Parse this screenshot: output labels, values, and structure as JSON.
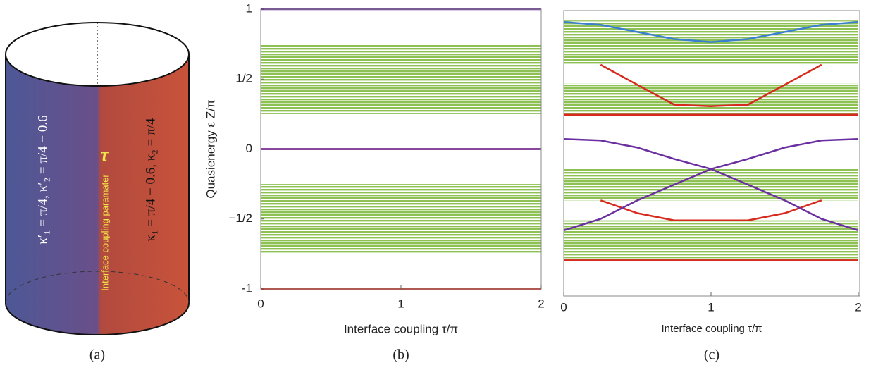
{
  "diagram": {
    "caption": "(a)",
    "left_text": "κ′₁ = π/4,   κ′₂ = π/4 − 0.6",
    "right_text": "κ₁ = π/4 − 0.6,   κ₂ = π/4",
    "interface_text": "Interface coupling paramater",
    "interface_symbol": "τ"
  },
  "chart_data": [
    {
      "type": "line",
      "caption": "(b)",
      "xlabel": "Interface coupling τ/π",
      "ylabel": "Quasienergy ε Z/π",
      "x": [
        0,
        2
      ],
      "xlim": [
        0,
        2
      ],
      "xticks": [
        0,
        1,
        2
      ],
      "ylim": [
        -1,
        1
      ],
      "yticks": [
        1,
        {
          "value": 0.5,
          "label": "1/2"
        },
        0,
        {
          "value": -0.5,
          "label": "−1/2"
        },
        -1
      ],
      "band_color": "#8dc153",
      "bands": [
        [
          0.25,
          0.75
        ],
        [
          -0.75,
          -0.25
        ]
      ],
      "series": [
        {
          "color": "#6a2fa0",
          "values": [
            1,
            1
          ]
        },
        {
          "color": "#d62a1e",
          "values": [
            0,
            0
          ]
        },
        {
          "color": "#6a2fa0",
          "values": [
            0,
            0
          ]
        },
        {
          "color": "#d62a1e",
          "values": [
            -1,
            -1
          ]
        }
      ]
    },
    {
      "type": "line",
      "caption": "(c)",
      "xlabel": "Interface coupling τ/π",
      "x": [
        0,
        0.25,
        0.5,
        0.75,
        1,
        1.25,
        1.5,
        1.75,
        2
      ],
      "xlim": [
        0,
        2
      ],
      "xticks": [
        0,
        1,
        2
      ],
      "ylim": [
        -1,
        1
      ],
      "band_color": "#8dc153",
      "bands": [
        [
          0.62,
          0.93
        ],
        [
          0.27,
          0.49
        ],
        [
          -0.33,
          -0.11
        ],
        [
          -0.75,
          -0.47
        ]
      ],
      "series": [
        {
          "color": "#3a7fd0",
          "values": [
            0.92,
            0.9,
            0.85,
            0.8,
            0.78,
            0.8,
            0.85,
            0.9,
            0.92
          ]
        },
        {
          "color": "#d62a1e",
          "values": [
            null,
            0.62,
            0.48,
            0.34,
            0.33,
            0.34,
            0.48,
            0.62,
            null
          ]
        },
        {
          "color": "#d62a1e",
          "values": [
            0.27,
            0.27,
            0.27,
            0.27,
            0.27,
            0.27,
            0.27,
            0.27,
            0.27
          ]
        },
        {
          "color": "#6a2fa0",
          "values": [
            0.1,
            0.09,
            0.04,
            -0.04,
            -0.11,
            -0.04,
            0.04,
            0.09,
            0.1
          ]
        },
        {
          "color": "#d62a1e",
          "values": [
            null,
            -0.33,
            -0.42,
            -0.47,
            -0.47,
            -0.47,
            -0.42,
            -0.33,
            null
          ]
        },
        {
          "color": "#6a2fa0",
          "values": [
            -0.54,
            -0.46,
            -0.33,
            -0.22,
            -0.11,
            -0.22,
            -0.33,
            -0.46,
            -0.54
          ]
        },
        {
          "color": "#d62a1e",
          "values": [
            -0.75,
            -0.75,
            -0.75,
            -0.75,
            -0.75,
            -0.75,
            -0.75,
            -0.75,
            -0.75
          ]
        }
      ]
    }
  ]
}
